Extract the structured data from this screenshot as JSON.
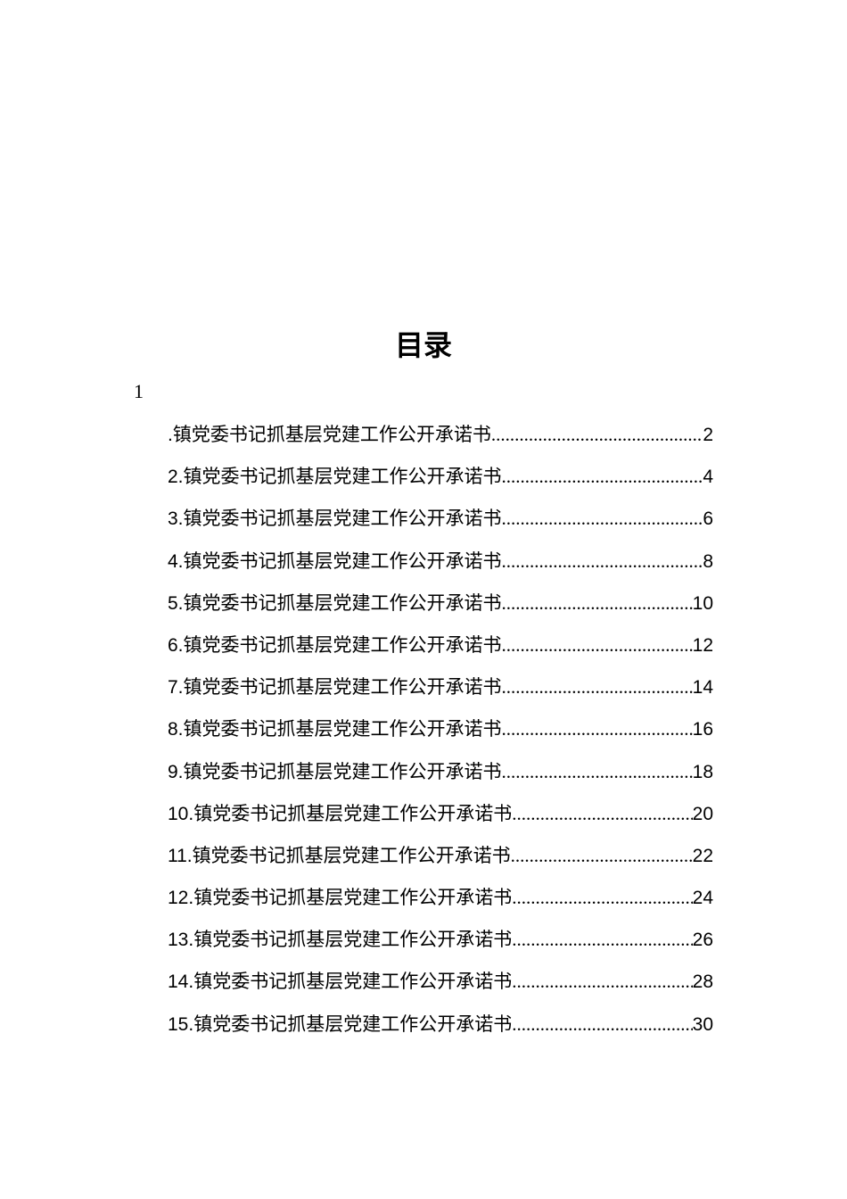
{
  "title": "目录",
  "section_marker": "1",
  "toc": {
    "entries": [
      {
        "prefix": ".",
        "text": "镇党委书记抓基层党建工作公开承诺书",
        "page": "2"
      },
      {
        "prefix": "2.",
        "text": "镇党委书记抓基层党建工作公开承诺书",
        "page": "4"
      },
      {
        "prefix": "3.",
        "text": "镇党委书记抓基层党建工作公开承诺书",
        "page": "6"
      },
      {
        "prefix": "4.",
        "text": "镇党委书记抓基层党建工作公开承诺书",
        "page": "8"
      },
      {
        "prefix": "5.",
        "text": "镇党委书记抓基层党建工作公开承诺书",
        "page": "10"
      },
      {
        "prefix": "6.",
        "text": "镇党委书记抓基层党建工作公开承诺书",
        "page": "12"
      },
      {
        "prefix": "7.",
        "text": "镇党委书记抓基层党建工作公开承诺书",
        "page": "14"
      },
      {
        "prefix": "8.",
        "text": "镇党委书记抓基层党建工作公开承诺书",
        "page": "16"
      },
      {
        "prefix": "9.",
        "text": "镇党委书记抓基层党建工作公开承诺书",
        "page": "18"
      },
      {
        "prefix": "10.",
        "text": "镇党委书记抓基层党建工作公开承诺书",
        "page": "20"
      },
      {
        "prefix": "11.",
        "text": "镇党委书记抓基层党建工作公开承诺书",
        "page": "22"
      },
      {
        "prefix": "12.",
        "text": "镇党委书记抓基层党建工作公开承诺书",
        "page": "24"
      },
      {
        "prefix": "13.",
        "text": "镇党委书记抓基层党建工作公开承诺书",
        "page": "26"
      },
      {
        "prefix": "14.",
        "text": "镇党委书记抓基层党建工作公开承诺书",
        "page": "28"
      },
      {
        "prefix": "15.",
        "text": "镇党委书记抓基层党建工作公开承诺书",
        "page": "30"
      }
    ]
  },
  "colors": {
    "background": "#ffffff",
    "text": "#000000"
  },
  "fonts": {
    "title_size": 32,
    "body_size": 21,
    "section_size": 22
  }
}
